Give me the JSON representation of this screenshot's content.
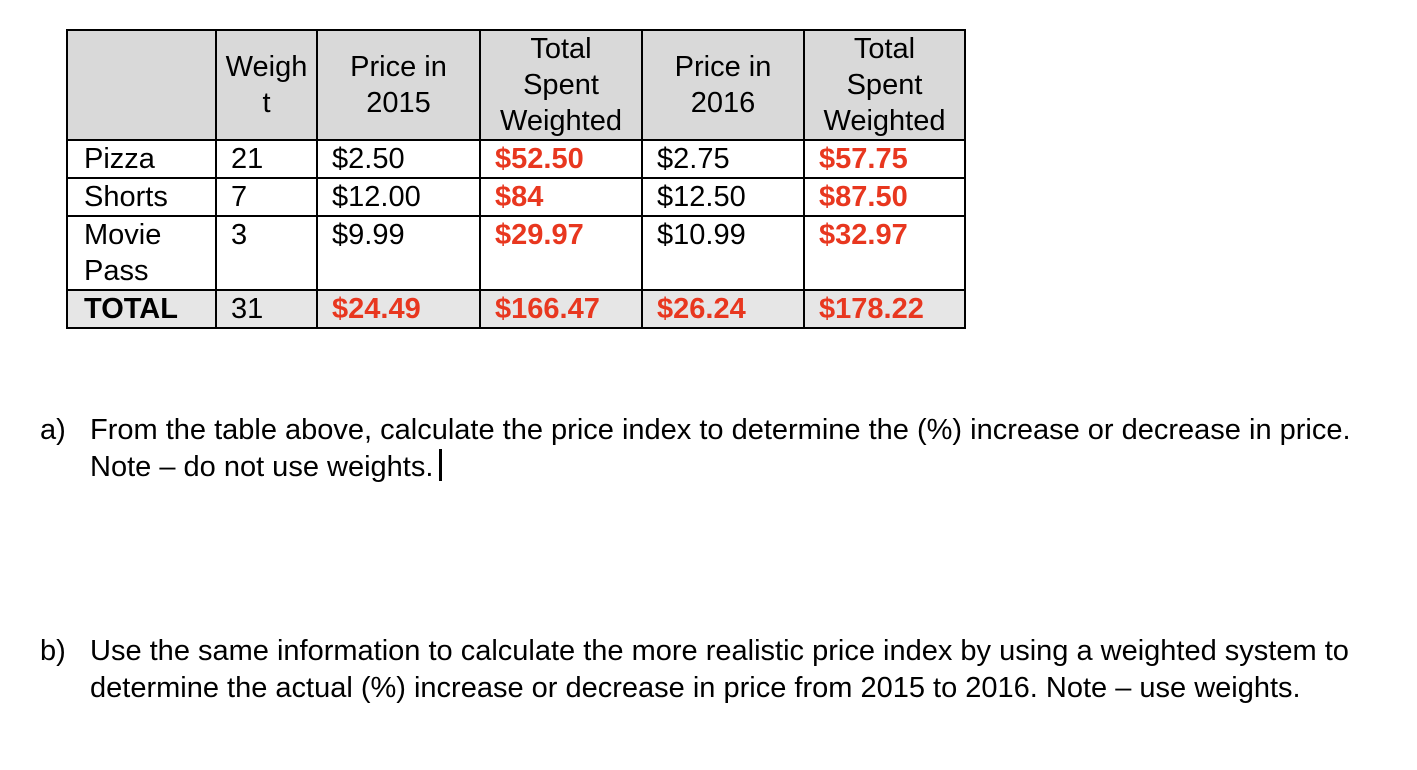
{
  "table": {
    "headers": [
      {
        "id": "item",
        "lines": [
          ""
        ]
      },
      {
        "id": "weight",
        "lines": [
          "Weigh",
          "t"
        ]
      },
      {
        "id": "price2015",
        "lines": [
          "Price in",
          "2015"
        ]
      },
      {
        "id": "total2015",
        "lines": [
          "Total",
          "Spent",
          "Weighted"
        ]
      },
      {
        "id": "price2016",
        "lines": [
          "Price in",
          "2016"
        ]
      },
      {
        "id": "total2016",
        "lines": [
          "Total",
          "Spent",
          "Weighted"
        ]
      }
    ],
    "rows": [
      {
        "item": [
          "Pizza"
        ],
        "weight": "21",
        "price2015": "$2.50",
        "total2015": "$52.50",
        "price2016": "$2.75",
        "total2016": "$57.75"
      },
      {
        "item": [
          "Shorts"
        ],
        "weight": "7",
        "price2015": "$12.00",
        "total2015": "$84",
        "price2016": "$12.50",
        "total2016": "$87.50"
      },
      {
        "item": [
          "Movie",
          "Pass"
        ],
        "weight": "3",
        "price2015": "$9.99",
        "total2015": "$29.97",
        "price2016": "$10.99",
        "total2016": "$32.97"
      }
    ],
    "total": {
      "label": "TOTAL",
      "weight": "31",
      "price2015": "$24.49",
      "total2015": "$166.47",
      "price2016": "$26.24",
      "total2016": "$178.22"
    },
    "highlight_color": "#e8371f",
    "header_bg": "#d9d9d9"
  },
  "questions": [
    {
      "marker": "a)",
      "text": "From the table above, calculate the price index to determine the (%) increase or decrease in price.  Note – do not use weights."
    },
    {
      "marker": "b)",
      "text": "Use the same information to calculate the more realistic price index by using a weighted system to determine the actual (%) increase or decrease in price from 2015 to 2016.  Note – use weights."
    }
  ]
}
